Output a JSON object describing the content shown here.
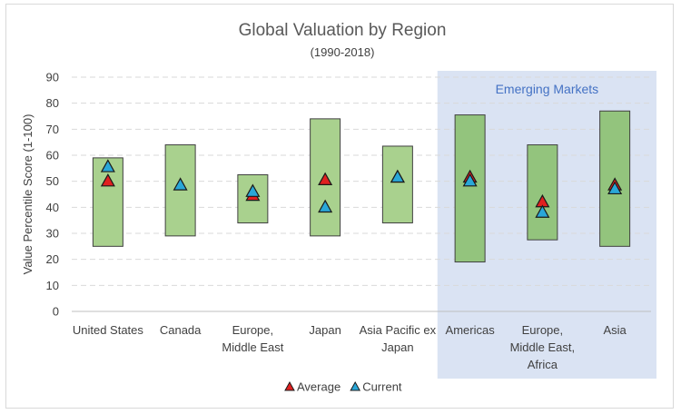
{
  "chart_data": {
    "type": "floating-bar-with-markers",
    "title": "Global Valuation by Region",
    "subtitle": "(1990-2018)",
    "ylabel": "Value Percentile Score (1-100)",
    "ylim": [
      0,
      90
    ],
    "yticks": [
      0,
      10,
      20,
      30,
      40,
      50,
      60,
      70,
      80,
      90
    ],
    "grid": true,
    "categories": [
      [
        "United States"
      ],
      [
        "Canada"
      ],
      [
        "Europe,",
        "Middle East"
      ],
      [
        "Japan"
      ],
      [
        "Asia Pacific ex",
        "Japan"
      ],
      [
        "Americas"
      ],
      [
        "Europe,",
        "Middle East,",
        "Africa"
      ],
      [
        "Asia"
      ]
    ],
    "range": {
      "low": [
        25,
        29,
        34,
        29,
        34,
        19,
        27.5,
        25
      ],
      "high": [
        59,
        64,
        52.5,
        74,
        63.5,
        75.5,
        64,
        77
      ]
    },
    "series": [
      {
        "name": "Average",
        "values": [
          50.5,
          null,
          45,
          51,
          52,
          52,
          42.5,
          49
        ],
        "color": "#e02020"
      },
      {
        "name": "Current",
        "values": [
          56,
          49,
          46.5,
          40.5,
          52,
          50.5,
          38.5,
          47.5
        ],
        "color": "#2aa7d8"
      }
    ],
    "annotation": {
      "text": "Emerging Markets",
      "applies_to_categories": [
        5,
        6,
        7
      ]
    },
    "legend": {
      "placement": "bottom-center",
      "items": [
        "Average",
        "Current"
      ]
    },
    "colors": {
      "developed_bar": "#a9d18e",
      "emerging_bar": "#93c47d",
      "emerging_panel": "#dae3f3",
      "annotation_text": "#4472c4",
      "grid": "#d9d9d9"
    }
  }
}
